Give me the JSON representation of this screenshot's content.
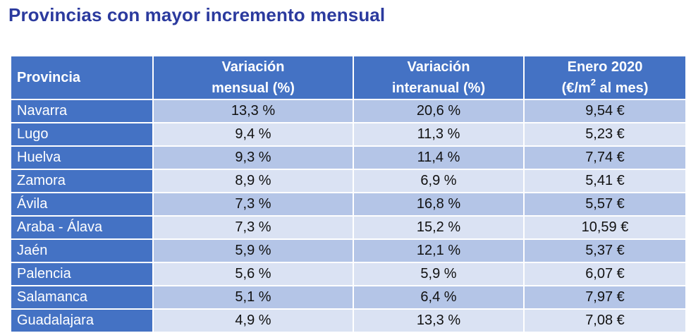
{
  "page": {
    "title": "Provincias con mayor incremento mensual"
  },
  "colors": {
    "title": "#2b3a9e",
    "header_bg": "#4472c4",
    "row_odd": "#b4c5e7",
    "row_even": "#dae2f3"
  },
  "table": {
    "headers": {
      "provincia": "Provincia",
      "mensual_line1": "Variación",
      "mensual_line2": "mensual (%)",
      "interanual_line1": "Variación",
      "interanual_line2": "interanual (%)",
      "precio_line1": "Enero 2020",
      "precio_line2_pre": "(€/m",
      "precio_line2_sup": "2",
      "precio_line2_post": " al mes)"
    },
    "rows": [
      {
        "provincia": "Navarra",
        "mensual": "13,3 %",
        "interanual": "20,6 %",
        "precio": "9,54 €"
      },
      {
        "provincia": "Lugo",
        "mensual": "9,4 %",
        "interanual": "11,3 %",
        "precio": "5,23 €"
      },
      {
        "provincia": "Huelva",
        "mensual": "9,3 %",
        "interanual": "11,4 %",
        "precio": "7,74 €"
      },
      {
        "provincia": "Zamora",
        "mensual": "8,9 %",
        "interanual": "6,9 %",
        "precio": "5,41 €"
      },
      {
        "provincia": "Ávila",
        "mensual": "7,3 %",
        "interanual": "16,8 %",
        "precio": "5,57 €"
      },
      {
        "provincia": "Araba - Álava",
        "mensual": "7,3 %",
        "interanual": "15,2 %",
        "precio": "10,59 €"
      },
      {
        "provincia": "Jaén",
        "mensual": "5,9 %",
        "interanual": "12,1 %",
        "precio": "5,37 €"
      },
      {
        "provincia": "Palencia",
        "mensual": "5,6 %",
        "interanual": "5,9 %",
        "precio": "6,07 €"
      },
      {
        "provincia": "Salamanca",
        "mensual": "5,1 %",
        "interanual": "6,4 %",
        "precio": "7,97 €"
      },
      {
        "provincia": "Guadalajara",
        "mensual": "4,9 %",
        "interanual": "13,3 %",
        "precio": "7,08 €"
      }
    ]
  }
}
